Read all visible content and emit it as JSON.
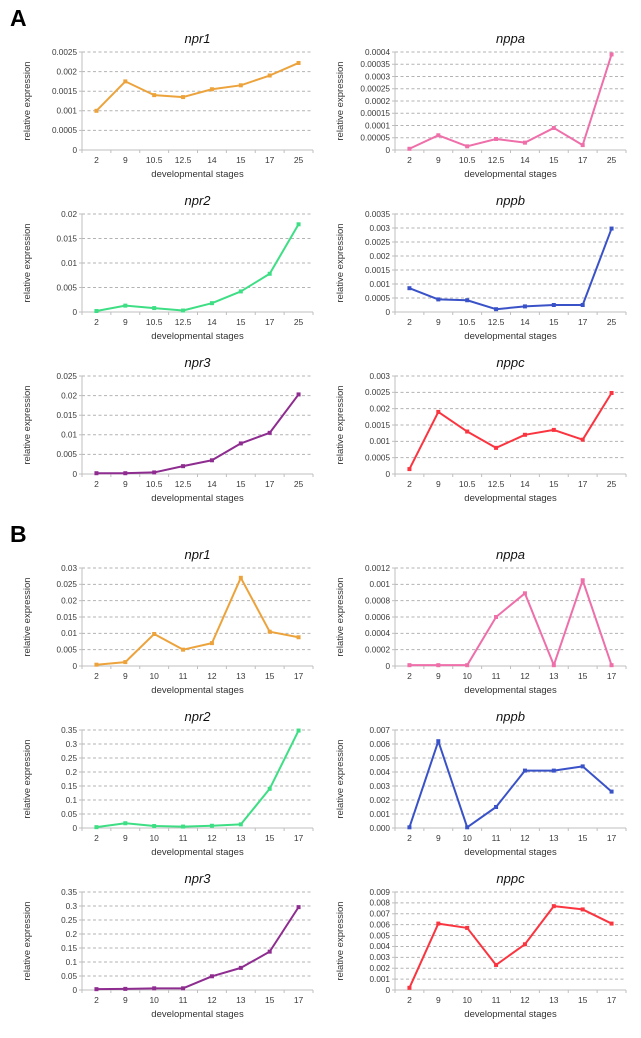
{
  "panels": [
    {
      "label": "A"
    },
    {
      "label": "B"
    }
  ],
  "axis": {
    "xlabel": "developmental stages",
    "ylabel": "relative expression"
  },
  "chart_data": [
    {
      "type": "line",
      "panel": "A",
      "title": "npr1",
      "color": "#EDA33C",
      "xlabel": "developmental stages",
      "ylabel": "relative expression",
      "categories": [
        "2",
        "9",
        "10.5",
        "12.5",
        "14",
        "15",
        "17",
        "25"
      ],
      "values": [
        0.001,
        0.00175,
        0.0014,
        0.00135,
        0.00155,
        0.00165,
        0.0019,
        0.00222
      ],
      "ylim": [
        0,
        0.0025
      ],
      "ytick_labels": [
        "0",
        "0.0005",
        "0.001",
        "0.0015",
        "0.002",
        "0.0025"
      ],
      "grid": "dashed-horizontal",
      "legend": "none"
    },
    {
      "type": "line",
      "panel": "A",
      "title": "nppa",
      "color": "#EE6FA9",
      "xlabel": "developmental stages",
      "ylabel": "relative expression",
      "categories": [
        "2",
        "9",
        "10.5",
        "12.5",
        "14",
        "15",
        "17",
        "25"
      ],
      "values": [
        5e-06,
        6e-05,
        1.5e-05,
        4.5e-05,
        3e-05,
        9e-05,
        2e-05,
        0.00039
      ],
      "ylim": [
        0,
        0.0004
      ],
      "ytick_labels": [
        "0",
        "0.00005",
        "0.0001",
        "0.00015",
        "0.0002",
        "0.00025",
        "0.0003",
        "0.00035",
        "0.0004"
      ],
      "grid": "dashed-horizontal",
      "legend": "none"
    },
    {
      "type": "line",
      "panel": "A",
      "title": "npr2",
      "color": "#3EDE85",
      "xlabel": "developmental stages",
      "ylabel": "relative expression",
      "categories": [
        "2",
        "9",
        "10.5",
        "12.5",
        "14",
        "15",
        "17",
        "25"
      ],
      "values": [
        0.0002,
        0.0013,
        0.0008,
        0.0003,
        0.0018,
        0.0042,
        0.0078,
        0.0179
      ],
      "ylim": [
        0,
        0.02
      ],
      "ytick_labels": [
        "0",
        "0.005",
        "0.01",
        "0.015",
        "0.02"
      ],
      "grid": "dashed-horizontal",
      "legend": "none"
    },
    {
      "type": "line",
      "panel": "A",
      "title": "nppb",
      "color": "#3A52C8",
      "xlabel": "developmental stages",
      "ylabel": "relative expression",
      "categories": [
        "2",
        "9",
        "10.5",
        "12.5",
        "14",
        "15",
        "17",
        "25"
      ],
      "values": [
        0.00085,
        0.00045,
        0.00042,
        0.0001,
        0.0002,
        0.00025,
        0.00025,
        0.00298
      ],
      "ylim": [
        0,
        0.0035
      ],
      "ytick_labels": [
        "0",
        "0.0005",
        "0.001",
        "0.0015",
        "0.002",
        "0.0025",
        "0.003",
        "0.0035"
      ],
      "grid": "dashed-horizontal",
      "legend": "none"
    },
    {
      "type": "line",
      "panel": "A",
      "title": "npr3",
      "color": "#8E2C90",
      "xlabel": "developmental stages",
      "ylabel": "relative expression",
      "categories": [
        "2",
        "9",
        "10.5",
        "12.5",
        "14",
        "15",
        "17",
        "25"
      ],
      "values": [
        0.0002,
        0.0002,
        0.0004,
        0.002,
        0.0035,
        0.0078,
        0.0105,
        0.0203
      ],
      "ylim": [
        0,
        0.025
      ],
      "ytick_labels": [
        "0",
        "0.005",
        "0.01",
        "0.015",
        "0.02",
        "0.025"
      ],
      "grid": "dashed-horizontal",
      "legend": "none"
    },
    {
      "type": "line",
      "panel": "A",
      "title": "nppc",
      "color": "#FA3540",
      "xlabel": "developmental stages",
      "ylabel": "relative expression",
      "categories": [
        "2",
        "9",
        "10.5",
        "12.5",
        "14",
        "15",
        "17",
        "25"
      ],
      "values": [
        0.00015,
        0.0019,
        0.0013,
        0.0008,
        0.0012,
        0.00135,
        0.00105,
        0.00248
      ],
      "ylim": [
        0,
        0.003
      ],
      "ytick_labels": [
        "0",
        "0.0005",
        "0.001",
        "0.0015",
        "0.002",
        "0.0025",
        "0.003"
      ],
      "grid": "dashed-horizontal",
      "legend": "none"
    },
    {
      "type": "line",
      "panel": "B",
      "title": "npr1",
      "color": "#EDA33C",
      "xlabel": "developmental stages",
      "ylabel": "relative expression",
      "categories": [
        "2",
        "9",
        "10",
        "11",
        "12",
        "13",
        "15",
        "17"
      ],
      "values": [
        0.0004,
        0.0012,
        0.0098,
        0.005,
        0.007,
        0.027,
        0.0105,
        0.0088
      ],
      "ylim": [
        0,
        0.03
      ],
      "ytick_labels": [
        "0",
        "0.005",
        "0.01",
        "0.015",
        "0.02",
        "0.025",
        "0.03"
      ],
      "grid": "dashed-horizontal",
      "legend": "none"
    },
    {
      "type": "line",
      "panel": "B",
      "title": "nppa",
      "color": "#EE6FA9",
      "xlabel": "developmental stages",
      "ylabel": "relative expression",
      "categories": [
        "2",
        "9",
        "10",
        "11",
        "12",
        "13",
        "15",
        "17"
      ],
      "values": [
        1e-05,
        1e-05,
        1e-05,
        0.0006,
        0.00089,
        1e-05,
        0.00105,
        1e-05
      ],
      "ylim": [
        0,
        0.0012
      ],
      "ytick_labels": [
        "0",
        "0.0002",
        "0.0004",
        "0.0006",
        "0.0008",
        "0.001",
        "0.0012"
      ],
      "grid": "dashed-horizontal",
      "legend": "none"
    },
    {
      "type": "line",
      "panel": "B",
      "title": "npr2",
      "color": "#3EDE85",
      "xlabel": "developmental stages",
      "ylabel": "relative expression",
      "categories": [
        "2",
        "9",
        "10",
        "11",
        "12",
        "13",
        "15",
        "17"
      ],
      "values": [
        0.003,
        0.017,
        0.007,
        0.005,
        0.008,
        0.013,
        0.14,
        0.348
      ],
      "ylim": [
        0,
        0.35
      ],
      "ytick_labels": [
        "0",
        "0.05",
        "0.1",
        "0.15",
        "0.2",
        "0.25",
        "0.3",
        "0.35"
      ],
      "grid": "dashed-horizontal",
      "legend": "none"
    },
    {
      "type": "line",
      "panel": "B",
      "title": "nppb",
      "color": "#3A52C8",
      "xlabel": "developmental stages",
      "ylabel": "relative expression",
      "categories": [
        "2",
        "9",
        "10",
        "11",
        "12",
        "13",
        "15",
        "17"
      ],
      "values": [
        5e-05,
        0.0062,
        5e-05,
        0.0015,
        0.0041,
        0.0041,
        0.0044,
        0.0026
      ],
      "ylim": [
        0,
        0.007
      ],
      "ytick_labels": [
        "0.000",
        "0.001",
        "0.002",
        "0.003",
        "0.004",
        "0.005",
        "0.006",
        "0.007"
      ],
      "grid": "dashed-horizontal",
      "legend": "none"
    },
    {
      "type": "line",
      "panel": "B",
      "title": "npr3",
      "color": "#8E2C90",
      "xlabel": "developmental stages",
      "ylabel": "relative expression",
      "categories": [
        "2",
        "9",
        "10",
        "11",
        "12",
        "13",
        "15",
        "17"
      ],
      "values": [
        0.003,
        0.004,
        0.006,
        0.006,
        0.049,
        0.079,
        0.137,
        0.296
      ],
      "ylim": [
        0,
        0.35
      ],
      "ytick_labels": [
        "0",
        "0.05",
        "0.1",
        "0.15",
        "0.2",
        "0.25",
        "0.3",
        "0.35"
      ],
      "grid": "dashed-horizontal",
      "legend": "none"
    },
    {
      "type": "line",
      "panel": "B",
      "title": "nppc",
      "color": "#FA3540",
      "xlabel": "developmental stages",
      "ylabel": "relative expression",
      "categories": [
        "2",
        "9",
        "10",
        "11",
        "12",
        "13",
        "15",
        "17"
      ],
      "values": [
        0.0002,
        0.0061,
        0.0057,
        0.0023,
        0.0042,
        0.0077,
        0.0074,
        0.0061
      ],
      "ylim": [
        0,
        0.009
      ],
      "ytick_labels": [
        "0",
        "0.001",
        "0.002",
        "0.003",
        "0.004",
        "0.005",
        "0.006",
        "0.007",
        "0.008",
        "0.009"
      ],
      "grid": "dashed-horizontal",
      "legend": "none"
    }
  ]
}
